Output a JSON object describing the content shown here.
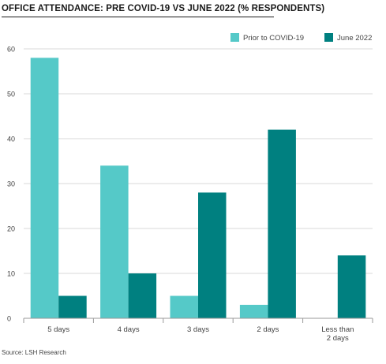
{
  "title": "OFFICE ATTENDANCE: PRE COVID-19 VS JUNE 2022 (% RESPONDENTS)",
  "source": "Source: LSH Research",
  "chart_data": {
    "type": "bar",
    "title": "OFFICE ATTENDANCE: PRE COVID-19 VS JUNE 2022 (% RESPONDENTS)",
    "xlabel": "",
    "ylabel": "",
    "categories": [
      [
        "5 days"
      ],
      [
        "4 days"
      ],
      [
        "3 days"
      ],
      [
        "2 days"
      ],
      [
        "Less than",
        "2 days"
      ]
    ],
    "series": [
      {
        "name": "Prior to COVID-19",
        "color": "#55c9c8",
        "values": [
          58,
          34,
          5,
          3,
          0
        ]
      },
      {
        "name": "June 2022",
        "color": "#008080",
        "values": [
          5,
          10,
          28,
          42,
          14
        ]
      }
    ],
    "ylim": [
      0,
      60
    ],
    "yticks": [
      0,
      10,
      20,
      30,
      40,
      50,
      60
    ],
    "grid": true,
    "legend": "top-right"
  }
}
